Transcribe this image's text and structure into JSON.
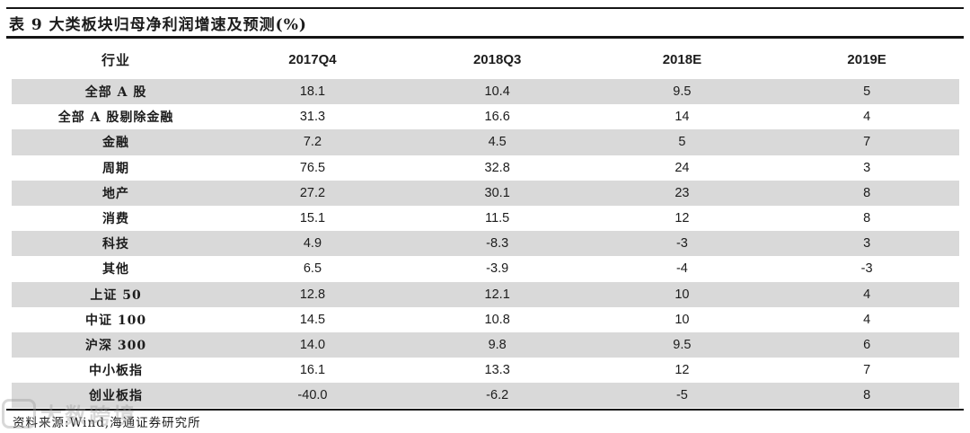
{
  "chart_data": {
    "type": "table",
    "title": "表 9  大类板块归母净利润增速及预测(%)",
    "columns": [
      "行业",
      "2017Q4",
      "2018Q3",
      "2018E",
      "2019E"
    ],
    "rows": [
      {
        "label": "全部 A 股",
        "values": [
          "18.1",
          "10.4",
          "9.5",
          "5"
        ]
      },
      {
        "label": "全部 A 股剔除金融",
        "values": [
          "31.3",
          "16.6",
          "14",
          "4"
        ]
      },
      {
        "label": "金融",
        "values": [
          "7.2",
          "4.5",
          "5",
          "7"
        ]
      },
      {
        "label": "周期",
        "values": [
          "76.5",
          "32.8",
          "24",
          "3"
        ]
      },
      {
        "label": "地产",
        "values": [
          "27.2",
          "30.1",
          "23",
          "8"
        ]
      },
      {
        "label": "消费",
        "values": [
          "15.1",
          "11.5",
          "12",
          "8"
        ]
      },
      {
        "label": "科技",
        "values": [
          "4.9",
          "-8.3",
          "-3",
          "3"
        ]
      },
      {
        "label": "其他",
        "values": [
          "6.5",
          "-3.9",
          "-4",
          "-3"
        ]
      },
      {
        "label": "上证 50",
        "values": [
          "12.8",
          "12.1",
          "10",
          "4"
        ]
      },
      {
        "label": "中证 100",
        "values": [
          "14.5",
          "10.8",
          "10",
          "4"
        ]
      },
      {
        "label": "沪深 300",
        "values": [
          "14.0",
          "9.8",
          "9.5",
          "6"
        ]
      },
      {
        "label": "中小板指",
        "values": [
          "16.1",
          "13.3",
          "12",
          "7"
        ]
      },
      {
        "label": "创业板指",
        "values": [
          "-40.0",
          "-6.2",
          "-5",
          "8"
        ]
      }
    ]
  },
  "source": "资料来源:Wind,海通证券研究所",
  "watermark": {
    "text": "大数跨境"
  },
  "style": {
    "stripe_color": "#d9d9d9",
    "text_color": "#1c1c1c",
    "rule_color": "#151515",
    "background": "#ffffff"
  }
}
